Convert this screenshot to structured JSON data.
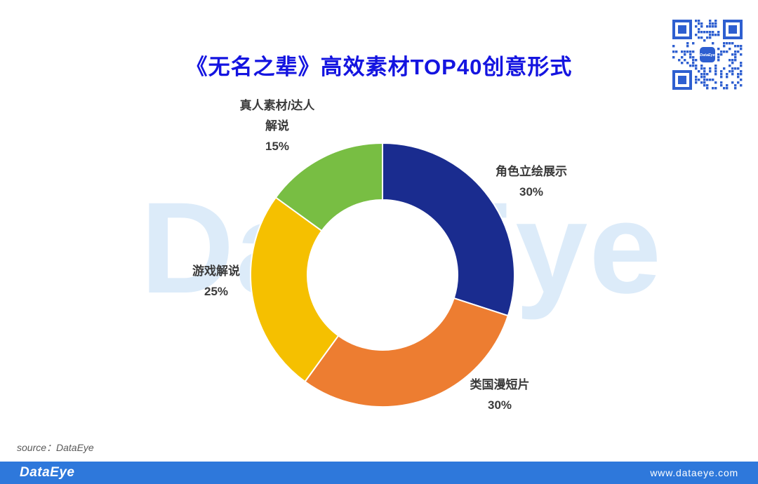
{
  "page": {
    "title": "《无名之辈》高效素材TOP40创意形式",
    "watermark_text": "DataEye",
    "source_label": "source：DataEye",
    "qr_logo_text": "DataEye",
    "footer": {
      "brand": "DataEye",
      "website": "www.dataeye.com"
    }
  },
  "colors": {
    "title": "#1414e0",
    "watermark": "#dcebf9",
    "footer_bar": "#2e78db",
    "qr_blue": "#2e5fd0",
    "label_text": "#3a3a3a"
  },
  "chart_data": {
    "type": "pie",
    "subtype": "donut",
    "title": "《无名之辈》高效素材TOP40创意形式",
    "start_angle_deg": 0,
    "direction": "clockwise",
    "inner_radius_ratio": 0.57,
    "legend_position": "none",
    "slices": [
      {
        "label": "角色立绘展示",
        "value": 30,
        "pct_label": "30%",
        "color": "#1a2c8f"
      },
      {
        "label": "类国漫短片",
        "value": 30,
        "pct_label": "30%",
        "color": "#ed7d31"
      },
      {
        "label": "游戏解说",
        "value": 25,
        "pct_label": "25%",
        "color": "#f5c000"
      },
      {
        "label": "真人素材/达人解说",
        "value": 15,
        "pct_label": "15%",
        "color": "#78be43"
      }
    ]
  }
}
